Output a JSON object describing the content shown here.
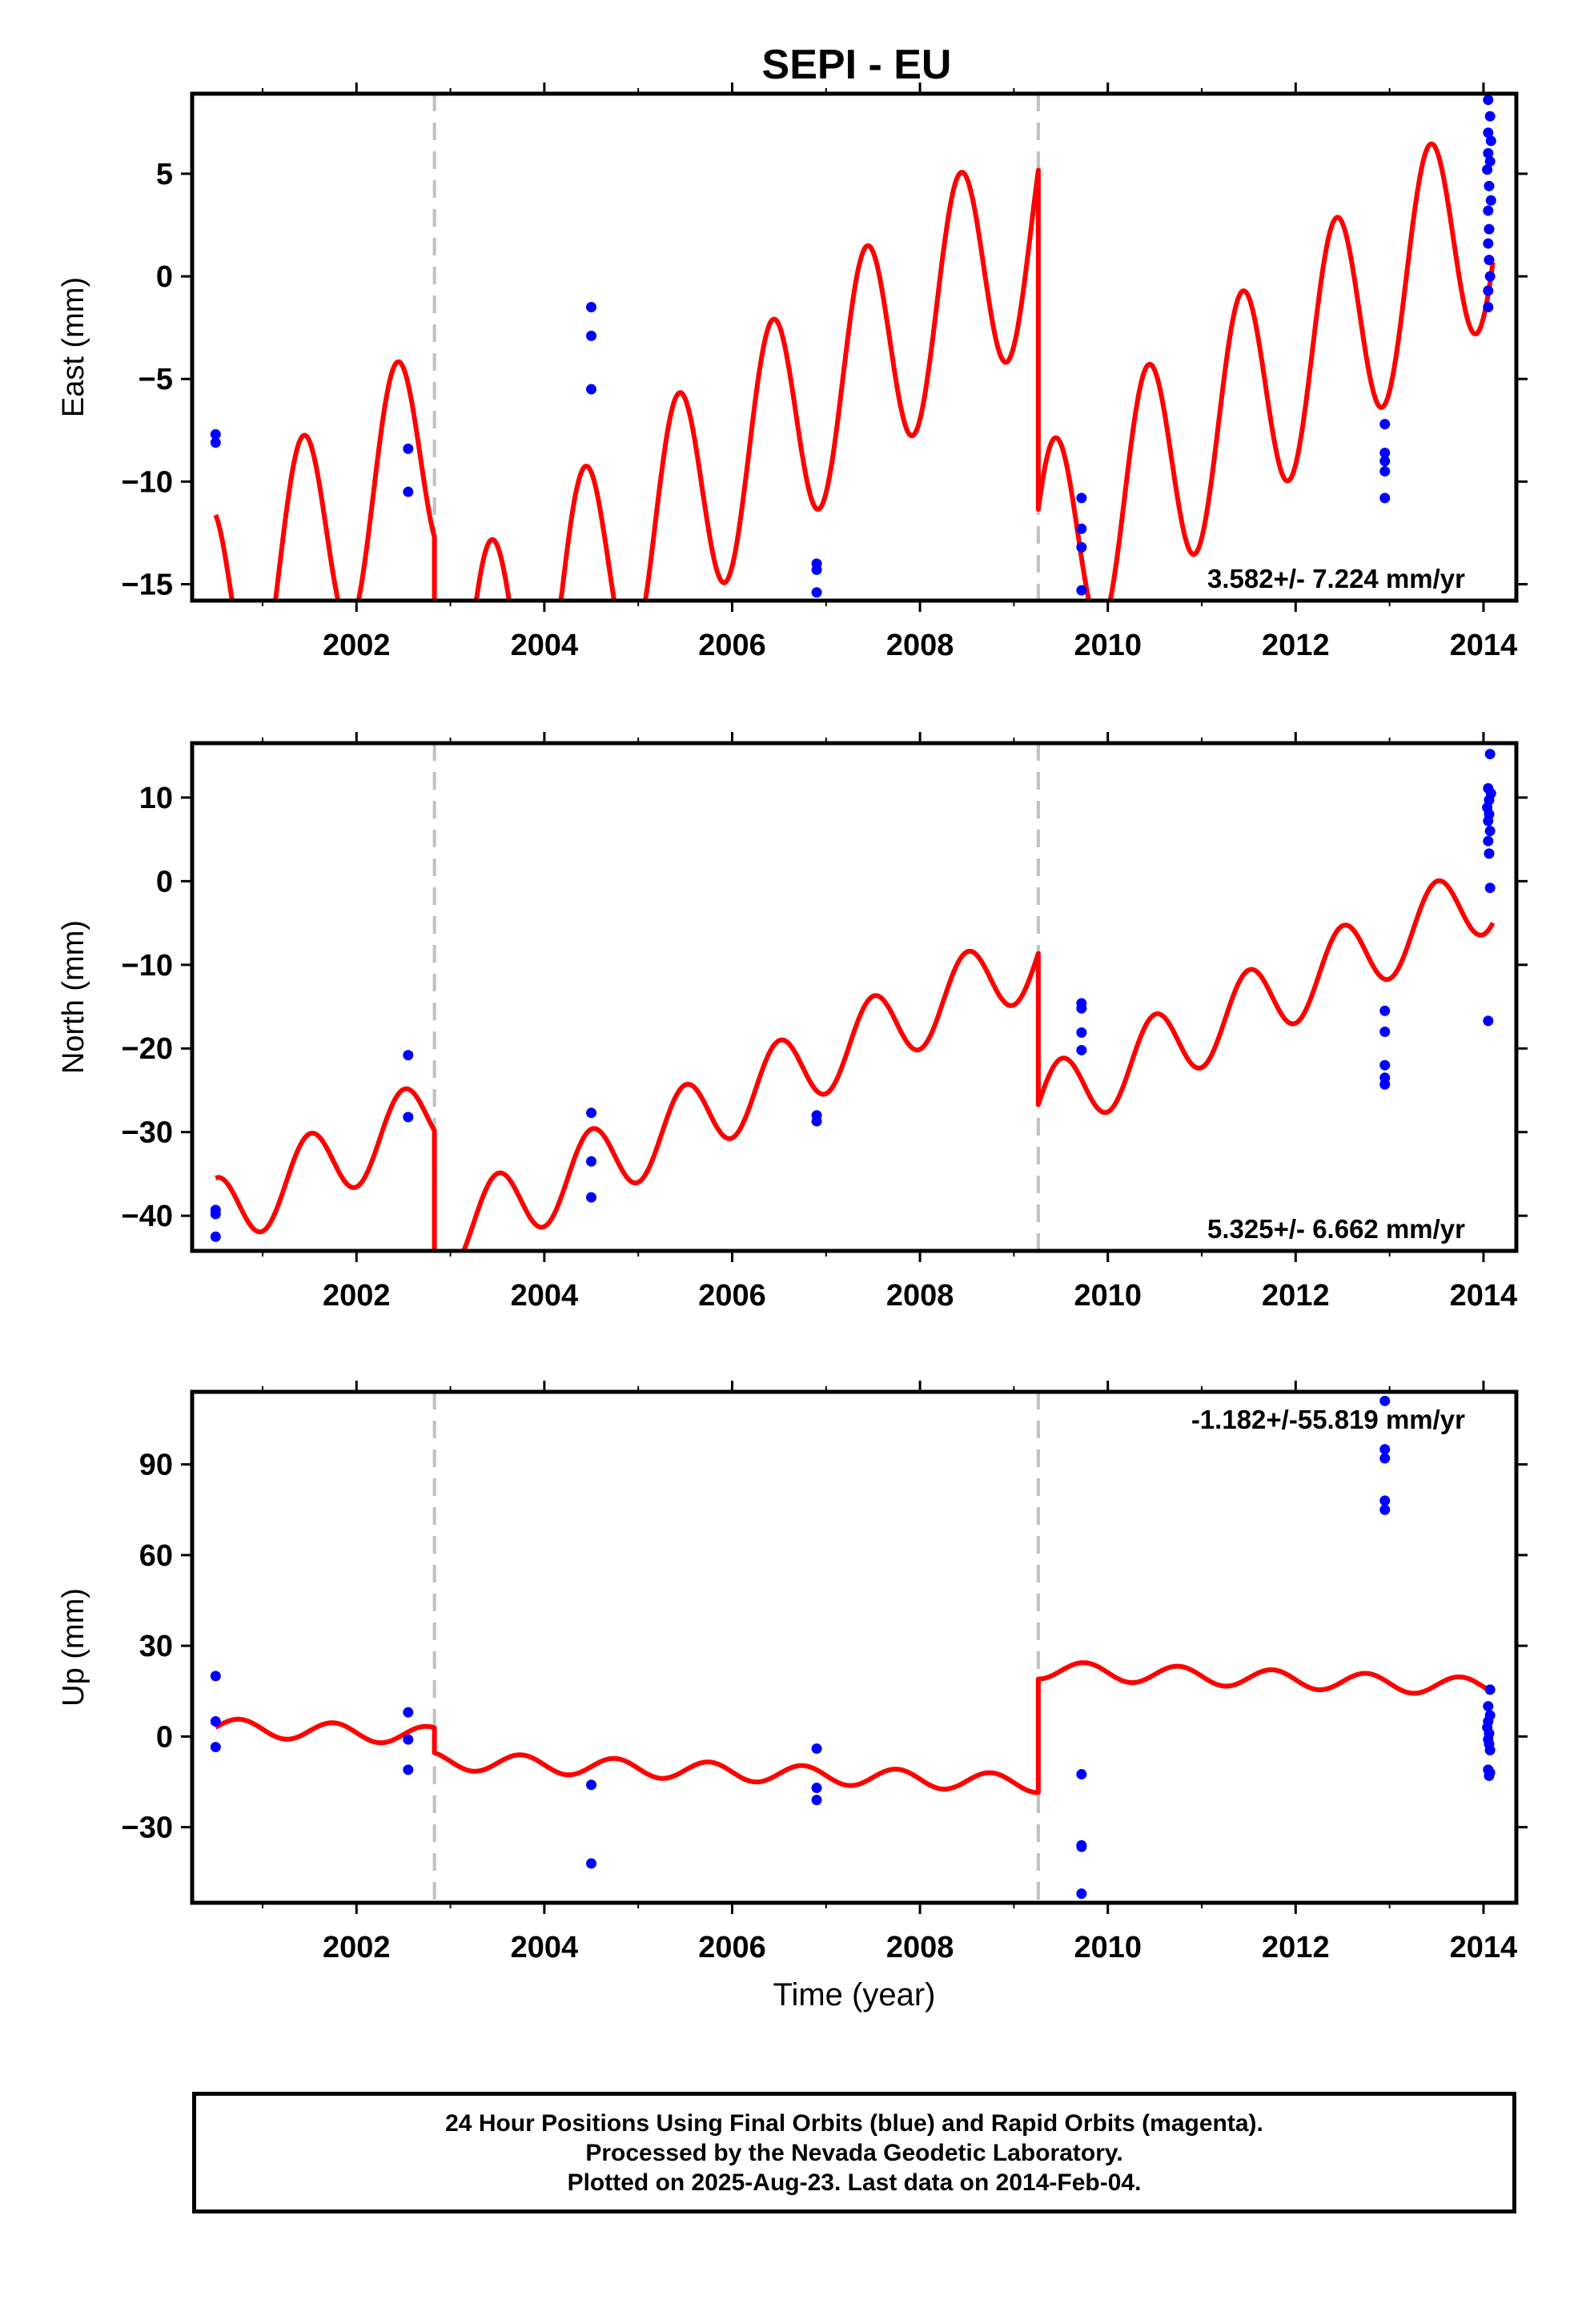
{
  "chart_data": {
    "type": "line",
    "title": "SEPI - EU",
    "xlabel": "Time (year)",
    "xlim": [
      2000.25,
      2014.35
    ],
    "x_ticks": [
      2002,
      2004,
      2006,
      2008,
      2010,
      2012,
      2014
    ],
    "x_tick_labels": [
      "2002",
      "2004",
      "2006",
      "2008",
      "2010",
      "2012",
      "2014"
    ],
    "breaks": [
      2002.83,
      2009.26
    ],
    "colors": {
      "model": "#ff0000",
      "points": "#0000ff",
      "breaks": "#c0c0c0",
      "axes": "#000000"
    },
    "panels": [
      {
        "name": "east",
        "ylabel": "East (mm)",
        "ylim": [
          -15.8,
          8.9
        ],
        "y_ticks": [
          -15,
          -10,
          -5,
          0,
          5
        ],
        "y_tick_labels": [
          "−15",
          "−10",
          "−5",
          "0",
          "5"
        ],
        "rate_label": "3.582+/- 7.224 mm/yr",
        "rate_position": "bottom-right",
        "model_segments": [
          {
            "t0": 2000.5,
            "t1": 2002.83,
            "a": -16.6,
            "b": 3.58,
            "c": 5.5,
            "phase": 0.18
          },
          {
            "t0": 2002.83,
            "t1": 2009.26,
            "a": -20.5,
            "b": 3.58,
            "c": 5.5,
            "phase": 0.18
          },
          {
            "t0": 2009.26,
            "t1": 2014.1,
            "a": -14.0,
            "b": 3.58,
            "c": 5.5,
            "phase": 0.18
          }
        ],
        "points": [
          {
            "x": 2000.5,
            "y": -7.7
          },
          {
            "x": 2000.5,
            "y": -8.1
          },
          {
            "x": 2002.55,
            "y": -8.4
          },
          {
            "x": 2002.55,
            "y": -10.5
          },
          {
            "x": 2004.5,
            "y": -1.5
          },
          {
            "x": 2004.5,
            "y": -2.9
          },
          {
            "x": 2004.5,
            "y": -5.5
          },
          {
            "x": 2006.9,
            "y": -14.0
          },
          {
            "x": 2006.9,
            "y": -14.3
          },
          {
            "x": 2006.9,
            "y": -15.4
          },
          {
            "x": 2009.72,
            "y": -10.8
          },
          {
            "x": 2009.72,
            "y": -12.3
          },
          {
            "x": 2009.72,
            "y": -13.2
          },
          {
            "x": 2009.72,
            "y": -15.3
          },
          {
            "x": 2012.95,
            "y": -7.2
          },
          {
            "x": 2012.95,
            "y": -8.6
          },
          {
            "x": 2012.95,
            "y": -9.0
          },
          {
            "x": 2012.95,
            "y": -9.5
          },
          {
            "x": 2012.95,
            "y": -10.8
          },
          {
            "x": 2014.05,
            "y": 8.6
          },
          {
            "x": 2014.07,
            "y": 7.8
          },
          {
            "x": 2014.05,
            "y": 7.0
          },
          {
            "x": 2014.08,
            "y": 6.6
          },
          {
            "x": 2014.05,
            "y": 6.0
          },
          {
            "x": 2014.07,
            "y": 5.6
          },
          {
            "x": 2014.04,
            "y": 5.2
          },
          {
            "x": 2014.06,
            "y": 4.4
          },
          {
            "x": 2014.08,
            "y": 3.7
          },
          {
            "x": 2014.05,
            "y": 3.2
          },
          {
            "x": 2014.06,
            "y": 2.3
          },
          {
            "x": 2014.05,
            "y": 1.6
          },
          {
            "x": 2014.06,
            "y": 0.8
          },
          {
            "x": 2014.07,
            "y": 0.0
          },
          {
            "x": 2014.05,
            "y": -0.7
          },
          {
            "x": 2014.05,
            "y": -1.5
          }
        ]
      },
      {
        "name": "north",
        "ylabel": "North (mm)",
        "ylim": [
          -44.2,
          16.5
        ],
        "y_ticks": [
          -40,
          -30,
          -20,
          -10,
          0,
          10
        ],
        "y_tick_labels": [
          "−40",
          "−30",
          "−20",
          "−10",
          "0",
          "10"
        ],
        "rate_label": "5.325+/- 6.662 mm/yr",
        "rate_position": "bottom-right",
        "model_segments": [
          {
            "t0": 2000.5,
            "t1": 2002.83,
            "a": -40.0,
            "b": 5.3,
            "c": 4.5,
            "phase": 0.25
          },
          {
            "t0": 2002.83,
            "t1": 2009.26,
            "a": -43.0,
            "b": 5.3,
            "c": 4.5,
            "phase": 0.25
          },
          {
            "t0": 2009.26,
            "t1": 2014.1,
            "a": -27.0,
            "b": 5.3,
            "c": 4.5,
            "phase": 0.25
          }
        ],
        "points": [
          {
            "x": 2000.5,
            "y": -39.3
          },
          {
            "x": 2000.5,
            "y": -39.8
          },
          {
            "x": 2000.5,
            "y": -42.5
          },
          {
            "x": 2002.55,
            "y": -20.8
          },
          {
            "x": 2002.55,
            "y": -28.2
          },
          {
            "x": 2004.5,
            "y": -27.7
          },
          {
            "x": 2004.5,
            "y": -33.5
          },
          {
            "x": 2004.5,
            "y": -37.8
          },
          {
            "x": 2006.9,
            "y": -28.0
          },
          {
            "x": 2006.9,
            "y": -28.7
          },
          {
            "x": 2009.72,
            "y": -14.6
          },
          {
            "x": 2009.72,
            "y": -15.2
          },
          {
            "x": 2009.72,
            "y": -18.1
          },
          {
            "x": 2009.72,
            "y": -20.2
          },
          {
            "x": 2012.95,
            "y": -15.5
          },
          {
            "x": 2012.95,
            "y": -18.0
          },
          {
            "x": 2012.95,
            "y": -22.0
          },
          {
            "x": 2012.95,
            "y": -23.5
          },
          {
            "x": 2012.95,
            "y": -24.3
          },
          {
            "x": 2014.07,
            "y": 15.2
          },
          {
            "x": 2014.05,
            "y": 11.1
          },
          {
            "x": 2014.08,
            "y": 10.5
          },
          {
            "x": 2014.06,
            "y": 9.7
          },
          {
            "x": 2014.04,
            "y": 8.8
          },
          {
            "x": 2014.06,
            "y": 8.0
          },
          {
            "x": 2014.05,
            "y": 7.2
          },
          {
            "x": 2014.07,
            "y": 6.0
          },
          {
            "x": 2014.05,
            "y": 4.8
          },
          {
            "x": 2014.06,
            "y": 3.3
          },
          {
            "x": 2014.07,
            "y": -0.8
          },
          {
            "x": 2014.05,
            "y": -16.7
          }
        ]
      },
      {
        "name": "up",
        "ylabel": "Up (mm)",
        "ylim": [
          -55,
          114
        ],
        "y_ticks": [
          -30,
          0,
          30,
          60,
          90
        ],
        "y_tick_labels": [
          "−30",
          "0",
          "30",
          "60",
          "90"
        ],
        "rate_label": "-1.182+/-55.819 mm/yr",
        "rate_position": "top-right",
        "model_segments": [
          {
            "t0": 2000.5,
            "t1": 2002.83,
            "a": 3.0,
            "b": -1.18,
            "c": 3.0,
            "phase": 0.5
          },
          {
            "t0": 2002.83,
            "t1": 2009.26,
            "a": -8.0,
            "b": -1.18,
            "c": 3.0,
            "phase": 0.5
          },
          {
            "t0": 2009.26,
            "t1": 2014.1,
            "a": 22.0,
            "b": -1.18,
            "c": 3.0,
            "phase": 0.5
          }
        ],
        "points": [
          {
            "x": 2000.5,
            "y": 20.0
          },
          {
            "x": 2000.5,
            "y": 5.0
          },
          {
            "x": 2000.5,
            "y": -3.5
          },
          {
            "x": 2002.55,
            "y": 8.0
          },
          {
            "x": 2002.55,
            "y": -1.0
          },
          {
            "x": 2002.55,
            "y": -11.0
          },
          {
            "x": 2004.5,
            "y": -16.0
          },
          {
            "x": 2004.5,
            "y": -42.0
          },
          {
            "x": 2006.9,
            "y": -4.0
          },
          {
            "x": 2006.9,
            "y": -17.0
          },
          {
            "x": 2006.9,
            "y": -21.0
          },
          {
            "x": 2009.72,
            "y": -12.5
          },
          {
            "x": 2009.72,
            "y": -36.0
          },
          {
            "x": 2009.72,
            "y": -36.5
          },
          {
            "x": 2009.72,
            "y": -52.0
          },
          {
            "x": 2012.95,
            "y": 111.0
          },
          {
            "x": 2012.95,
            "y": 95.0
          },
          {
            "x": 2012.95,
            "y": 92.0
          },
          {
            "x": 2012.95,
            "y": 78.0
          },
          {
            "x": 2012.95,
            "y": 75.0
          },
          {
            "x": 2014.07,
            "y": 15.5
          },
          {
            "x": 2014.05,
            "y": 10.0
          },
          {
            "x": 2014.07,
            "y": 7.0
          },
          {
            "x": 2014.05,
            "y": 5.0
          },
          {
            "x": 2014.04,
            "y": 3.0
          },
          {
            "x": 2014.06,
            "y": 1.0
          },
          {
            "x": 2014.05,
            "y": -1.0
          },
          {
            "x": 2014.06,
            "y": -2.5
          },
          {
            "x": 2014.07,
            "y": -4.5
          },
          {
            "x": 2014.05,
            "y": -11.0
          },
          {
            "x": 2014.07,
            "y": -12.0
          },
          {
            "x": 2014.06,
            "y": -13.0
          }
        ]
      }
    ]
  },
  "footer": {
    "line1": "24 Hour Positions Using Final Orbits (blue) and Rapid Orbits (magenta).",
    "line2": "Processed by the Nevada Geodetic Laboratory.",
    "line3": "Plotted on 2025-Aug-23. Last data on 2014-Feb-04."
  }
}
